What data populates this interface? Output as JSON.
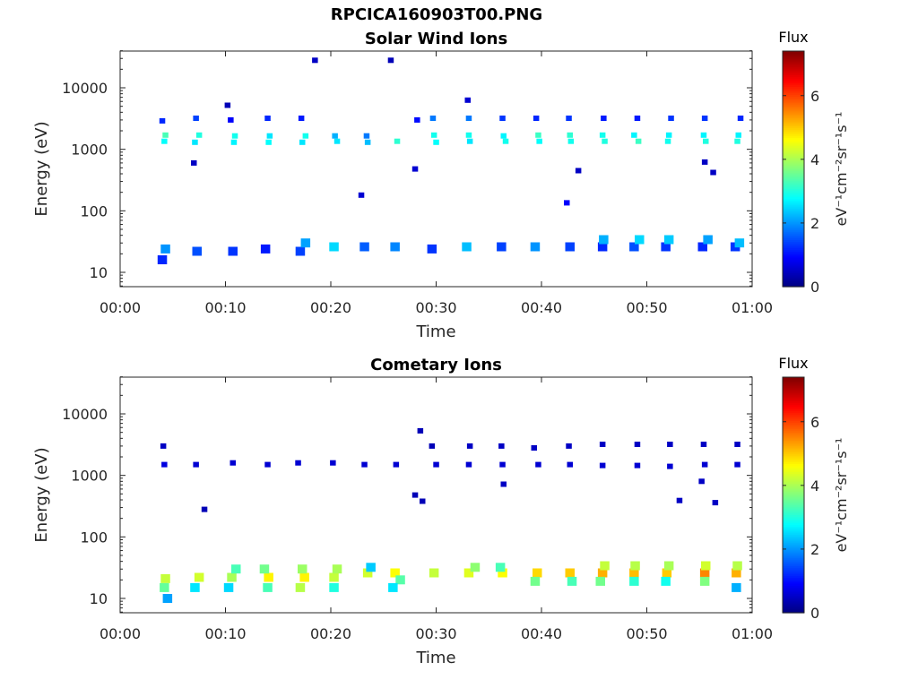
{
  "figure": {
    "title": "RPCICA160903T00.PNG"
  },
  "colormap": "jet",
  "chart_data": [
    {
      "type": "heatmap",
      "title": "Solar Wind Ions",
      "xlabel": "Time",
      "ylabel": "Energy (eV)",
      "x_ticks": [
        "00:00",
        "00:10",
        "00:20",
        "00:30",
        "00:40",
        "00:50",
        "01:00"
      ],
      "xlim_minutes": [
        0,
        60
      ],
      "y_ticks": [
        "10",
        "100",
        "1000",
        "10000"
      ],
      "y_scale": "log",
      "ylim": [
        6,
        45000
      ],
      "colorbar": {
        "label_top": "Flux",
        "unit": "eV⁻¹cm⁻²sr⁻¹s⁻¹",
        "ticks": [
          "0",
          "2",
          "4",
          "6"
        ],
        "range": [
          0,
          7.4
        ]
      },
      "grid": false,
      "cells": [
        {
          "t": 4,
          "e": 16,
          "v": 1.2
        },
        {
          "t": 4.3,
          "e": 24,
          "v": 2.0
        },
        {
          "t": 4.2,
          "e": 1350,
          "v": 2.8
        },
        {
          "t": 4.3,
          "e": 1700,
          "v": 3.3
        },
        {
          "t": 4,
          "e": 2900,
          "v": 1.2
        },
        {
          "t": 7.3,
          "e": 22,
          "v": 1.5
        },
        {
          "t": 7.1,
          "e": 1300,
          "v": 2.6
        },
        {
          "t": 7.5,
          "e": 1700,
          "v": 3.0
        },
        {
          "t": 7.2,
          "e": 3200,
          "v": 1.4
        },
        {
          "t": 7,
          "e": 600,
          "v": 0.5
        },
        {
          "t": 10.7,
          "e": 22,
          "v": 1.3
        },
        {
          "t": 10.8,
          "e": 1300,
          "v": 2.7
        },
        {
          "t": 10.9,
          "e": 1650,
          "v": 2.9
        },
        {
          "t": 10.5,
          "e": 3000,
          "v": 0.9
        },
        {
          "t": 10.2,
          "e": 5200,
          "v": 0.4
        },
        {
          "t": 13.8,
          "e": 24,
          "v": 1.1
        },
        {
          "t": 14.1,
          "e": 1300,
          "v": 2.8
        },
        {
          "t": 14.2,
          "e": 1650,
          "v": 2.6
        },
        {
          "t": 14,
          "e": 3200,
          "v": 1.2
        },
        {
          "t": 17.1,
          "e": 22,
          "v": 1.4
        },
        {
          "t": 17.6,
          "e": 30,
          "v": 2.1
        },
        {
          "t": 17.3,
          "e": 1300,
          "v": 2.6
        },
        {
          "t": 17.6,
          "e": 1650,
          "v": 2.9
        },
        {
          "t": 17.2,
          "e": 3200,
          "v": 1.1
        },
        {
          "t": 18.5,
          "e": 28000,
          "v": 0.5
        },
        {
          "t": 20.3,
          "e": 26,
          "v": 2.5
        },
        {
          "t": 20.6,
          "e": 1350,
          "v": 2.6
        },
        {
          "t": 20.4,
          "e": 1650,
          "v": 2.2
        },
        {
          "t": 23.2,
          "e": 26,
          "v": 1.6
        },
        {
          "t": 23.5,
          "e": 1300,
          "v": 2.3
        },
        {
          "t": 23.4,
          "e": 1650,
          "v": 1.8
        },
        {
          "t": 22.9,
          "e": 180,
          "v": 0.6
        },
        {
          "t": 26.1,
          "e": 26,
          "v": 1.9
        },
        {
          "t": 26.3,
          "e": 1350,
          "v": 3.1
        },
        {
          "t": 25.7,
          "e": 28000,
          "v": 0.4
        },
        {
          "t": 28,
          "e": 480,
          "v": 0.6
        },
        {
          "t": 28.2,
          "e": 3000,
          "v": 1.0
        },
        {
          "t": 29.6,
          "e": 24,
          "v": 1.3
        },
        {
          "t": 30,
          "e": 1300,
          "v": 2.8
        },
        {
          "t": 29.8,
          "e": 1700,
          "v": 2.9
        },
        {
          "t": 29.7,
          "e": 3200,
          "v": 1.8
        },
        {
          "t": 32.9,
          "e": 26,
          "v": 2.3
        },
        {
          "t": 33.2,
          "e": 1350,
          "v": 2.6
        },
        {
          "t": 33.1,
          "e": 1700,
          "v": 2.9
        },
        {
          "t": 33.1,
          "e": 3200,
          "v": 1.8
        },
        {
          "t": 33,
          "e": 6300,
          "v": 0.6
        },
        {
          "t": 36.2,
          "e": 26,
          "v": 1.4
        },
        {
          "t": 36.6,
          "e": 1350,
          "v": 2.9
        },
        {
          "t": 36.4,
          "e": 1650,
          "v": 2.7
        },
        {
          "t": 36.3,
          "e": 3200,
          "v": 1.3
        },
        {
          "t": 39.4,
          "e": 26,
          "v": 2.0
        },
        {
          "t": 39.8,
          "e": 1350,
          "v": 2.8
        },
        {
          "t": 39.7,
          "e": 1700,
          "v": 3.2
        },
        {
          "t": 39.5,
          "e": 3200,
          "v": 1.2
        },
        {
          "t": 42.7,
          "e": 26,
          "v": 1.4
        },
        {
          "t": 42.8,
          "e": 1350,
          "v": 2.9
        },
        {
          "t": 42.7,
          "e": 1700,
          "v": 3.1
        },
        {
          "t": 42.6,
          "e": 3200,
          "v": 1.3
        },
        {
          "t": 42.4,
          "e": 135,
          "v": 0.9
        },
        {
          "t": 43.5,
          "e": 450,
          "v": 0.5
        },
        {
          "t": 45.8,
          "e": 26,
          "v": 1.2
        },
        {
          "t": 45.9,
          "e": 34,
          "v": 2.2
        },
        {
          "t": 46,
          "e": 1350,
          "v": 3.0
        },
        {
          "t": 45.8,
          "e": 1700,
          "v": 2.9
        },
        {
          "t": 45.9,
          "e": 3200,
          "v": 1.1
        },
        {
          "t": 48.8,
          "e": 26,
          "v": 1.5
        },
        {
          "t": 49.3,
          "e": 34,
          "v": 2.5
        },
        {
          "t": 49.2,
          "e": 1350,
          "v": 3.2
        },
        {
          "t": 48.8,
          "e": 1700,
          "v": 2.7
        },
        {
          "t": 49.1,
          "e": 3200,
          "v": 1.1
        },
        {
          "t": 51.8,
          "e": 26,
          "v": 1.3
        },
        {
          "t": 52.1,
          "e": 34,
          "v": 2.4
        },
        {
          "t": 52,
          "e": 1350,
          "v": 2.9
        },
        {
          "t": 52.1,
          "e": 1700,
          "v": 2.7
        },
        {
          "t": 52.3,
          "e": 3200,
          "v": 1.3
        },
        {
          "t": 55.3,
          "e": 26,
          "v": 1.2
        },
        {
          "t": 55.8,
          "e": 34,
          "v": 2.1
        },
        {
          "t": 55.6,
          "e": 1350,
          "v": 3.0
        },
        {
          "t": 55.4,
          "e": 1700,
          "v": 2.7
        },
        {
          "t": 55.5,
          "e": 3200,
          "v": 1.3
        },
        {
          "t": 55.5,
          "e": 620,
          "v": 0.5
        },
        {
          "t": 56.3,
          "e": 420,
          "v": 0.5
        },
        {
          "t": 58.4,
          "e": 26,
          "v": 1.3
        },
        {
          "t": 58.8,
          "e": 30,
          "v": 2.3
        },
        {
          "t": 58.6,
          "e": 1350,
          "v": 3.0
        },
        {
          "t": 58.7,
          "e": 1700,
          "v": 2.7
        },
        {
          "t": 58.9,
          "e": 3200,
          "v": 1.2
        }
      ]
    },
    {
      "type": "heatmap",
      "title": "Cometary Ions",
      "xlabel": "Time",
      "ylabel": "Energy (eV)",
      "x_ticks": [
        "00:00",
        "00:10",
        "00:20",
        "00:30",
        "00:40",
        "00:50",
        "01:00"
      ],
      "xlim_minutes": [
        0,
        60
      ],
      "y_ticks": [
        "10",
        "100",
        "1000",
        "10000"
      ],
      "y_scale": "log",
      "ylim": [
        6,
        45000
      ],
      "colorbar": {
        "label_top": "Flux",
        "unit": "eV⁻¹cm⁻²sr⁻¹s⁻¹",
        "ticks": [
          "0",
          "2",
          "4",
          "6"
        ],
        "range": [
          0,
          7.4
        ]
      },
      "grid": false,
      "cells": [
        {
          "t": 4.3,
          "e": 21,
          "v": 4.2
        },
        {
          "t": 4.2,
          "e": 15,
          "v": 3.5
        },
        {
          "t": 4.5,
          "e": 10,
          "v": 2.1
        },
        {
          "t": 4.2,
          "e": 1500,
          "v": 0.7
        },
        {
          "t": 4.1,
          "e": 3000,
          "v": 0.5
        },
        {
          "t": 7.5,
          "e": 22,
          "v": 4.3
        },
        {
          "t": 7.1,
          "e": 15,
          "v": 2.6
        },
        {
          "t": 7.2,
          "e": 1500,
          "v": 0.6
        },
        {
          "t": 8,
          "e": 280,
          "v": 0.4
        },
        {
          "t": 10.6,
          "e": 22,
          "v": 4.0
        },
        {
          "t": 11,
          "e": 30,
          "v": 3.3
        },
        {
          "t": 10.3,
          "e": 15,
          "v": 2.5
        },
        {
          "t": 10.7,
          "e": 1600,
          "v": 0.6
        },
        {
          "t": 14.1,
          "e": 22,
          "v": 4.7
        },
        {
          "t": 13.7,
          "e": 30,
          "v": 3.6
        },
        {
          "t": 14,
          "e": 15,
          "v": 3.3
        },
        {
          "t": 14,
          "e": 1500,
          "v": 0.6
        },
        {
          "t": 17.5,
          "e": 22,
          "v": 4.7
        },
        {
          "t": 17.3,
          "e": 30,
          "v": 3.9
        },
        {
          "t": 17.1,
          "e": 15,
          "v": 4.1
        },
        {
          "t": 16.9,
          "e": 1600,
          "v": 0.6
        },
        {
          "t": 20.3,
          "e": 22,
          "v": 4.2
        },
        {
          "t": 20.6,
          "e": 30,
          "v": 4.0
        },
        {
          "t": 20.3,
          "e": 15,
          "v": 3.0
        },
        {
          "t": 20.2,
          "e": 1600,
          "v": 0.6
        },
        {
          "t": 23.5,
          "e": 26,
          "v": 4.3
        },
        {
          "t": 23.8,
          "e": 32,
          "v": 2.4
        },
        {
          "t": 23.2,
          "e": 1500,
          "v": 0.6
        },
        {
          "t": 26.1,
          "e": 26,
          "v": 4.6
        },
        {
          "t": 26.6,
          "e": 20,
          "v": 3.4
        },
        {
          "t": 25.9,
          "e": 15,
          "v": 2.6
        },
        {
          "t": 26.2,
          "e": 1500,
          "v": 0.6
        },
        {
          "t": 28,
          "e": 480,
          "v": 0.4
        },
        {
          "t": 28.7,
          "e": 380,
          "v": 0.4
        },
        {
          "t": 28.5,
          "e": 5300,
          "v": 0.4
        },
        {
          "t": 29.8,
          "e": 26,
          "v": 4.2
        },
        {
          "t": 30,
          "e": 1500,
          "v": 0.6
        },
        {
          "t": 29.6,
          "e": 3000,
          "v": 0.4
        },
        {
          "t": 33.1,
          "e": 26,
          "v": 4.4
        },
        {
          "t": 33.7,
          "e": 32,
          "v": 3.8
        },
        {
          "t": 33.1,
          "e": 1500,
          "v": 0.6
        },
        {
          "t": 33.2,
          "e": 3000,
          "v": 0.5
        },
        {
          "t": 36.3,
          "e": 26,
          "v": 4.6
        },
        {
          "t": 36.1,
          "e": 32,
          "v": 3.3
        },
        {
          "t": 36.3,
          "e": 1500,
          "v": 0.6
        },
        {
          "t": 36.2,
          "e": 3000,
          "v": 0.5
        },
        {
          "t": 36.4,
          "e": 720,
          "v": 0.5
        },
        {
          "t": 39.6,
          "e": 26,
          "v": 4.9
        },
        {
          "t": 39.4,
          "e": 19,
          "v": 3.6
        },
        {
          "t": 39.7,
          "e": 1500,
          "v": 0.6
        },
        {
          "t": 39.3,
          "e": 2800,
          "v": 0.5
        },
        {
          "t": 42.7,
          "e": 26,
          "v": 5.0
        },
        {
          "t": 42.9,
          "e": 19,
          "v": 3.3
        },
        {
          "t": 42.7,
          "e": 1500,
          "v": 0.6
        },
        {
          "t": 42.6,
          "e": 3000,
          "v": 0.5
        },
        {
          "t": 45.8,
          "e": 26,
          "v": 5.2
        },
        {
          "t": 46,
          "e": 34,
          "v": 4.2
        },
        {
          "t": 45.6,
          "e": 19,
          "v": 3.6
        },
        {
          "t": 45.8,
          "e": 1450,
          "v": 0.6
        },
        {
          "t": 45.8,
          "e": 3200,
          "v": 0.5
        },
        {
          "t": 48.8,
          "e": 26,
          "v": 5.1
        },
        {
          "t": 48.9,
          "e": 34,
          "v": 4.1
        },
        {
          "t": 48.8,
          "e": 19,
          "v": 3.1
        },
        {
          "t": 49.1,
          "e": 1450,
          "v": 0.6
        },
        {
          "t": 49.1,
          "e": 3200,
          "v": 0.5
        },
        {
          "t": 51.9,
          "e": 26,
          "v": 5.0
        },
        {
          "t": 52.1,
          "e": 34,
          "v": 4.0
        },
        {
          "t": 51.8,
          "e": 19,
          "v": 2.9
        },
        {
          "t": 52.2,
          "e": 1400,
          "v": 0.6
        },
        {
          "t": 52.2,
          "e": 3200,
          "v": 0.5
        },
        {
          "t": 53.1,
          "e": 390,
          "v": 0.5
        },
        {
          "t": 55.5,
          "e": 26,
          "v": 5.5
        },
        {
          "t": 55.6,
          "e": 34,
          "v": 4.3
        },
        {
          "t": 55.5,
          "e": 19,
          "v": 3.7
        },
        {
          "t": 55.5,
          "e": 1500,
          "v": 0.6
        },
        {
          "t": 55.4,
          "e": 3200,
          "v": 0.5
        },
        {
          "t": 55.2,
          "e": 800,
          "v": 0.5
        },
        {
          "t": 56.5,
          "e": 360,
          "v": 0.5
        },
        {
          "t": 58.5,
          "e": 26,
          "v": 5.2
        },
        {
          "t": 58.6,
          "e": 34,
          "v": 4.1
        },
        {
          "t": 58.5,
          "e": 15,
          "v": 2.2
        },
        {
          "t": 58.6,
          "e": 1500,
          "v": 0.6
        },
        {
          "t": 58.6,
          "e": 3200,
          "v": 0.5
        }
      ]
    }
  ]
}
